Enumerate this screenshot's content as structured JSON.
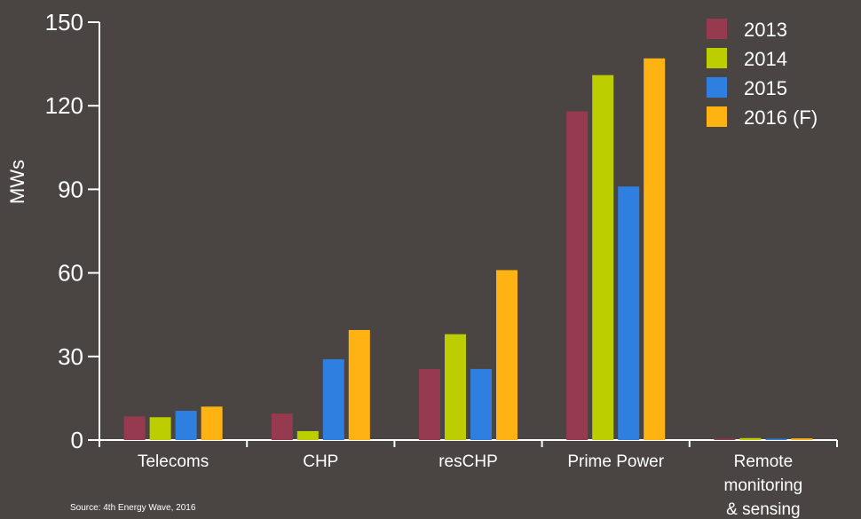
{
  "chart_data": {
    "type": "bar",
    "title": "",
    "xlabel": "",
    "ylabel": "MWs",
    "ylim": [
      0,
      150
    ],
    "yticks": [
      0,
      30,
      60,
      90,
      120,
      150
    ],
    "grid": false,
    "legend_position": "top-right",
    "categories": [
      [
        "Telecoms"
      ],
      [
        "CHP"
      ],
      [
        "resCHP"
      ],
      [
        "Prime Power"
      ],
      [
        "Remote",
        "monitoring",
        "& sensing"
      ]
    ],
    "series": [
      {
        "name": "2013",
        "color": "#963a50",
        "values": [
          8.5,
          9.5,
          25.5,
          118,
          0.3
        ]
      },
      {
        "name": "2014",
        "color": "#bccd00",
        "values": [
          8.2,
          3.2,
          38,
          131,
          0.7
        ]
      },
      {
        "name": "2015",
        "color": "#2e7fe0",
        "values": [
          10.5,
          29,
          25.5,
          91,
          0.3
        ]
      },
      {
        "name": "2016 (F)",
        "color": "#ffb312",
        "values": [
          12,
          39.5,
          61,
          137,
          0.6
        ]
      }
    ],
    "source": "Source: 4th Energy Wave, 2016"
  }
}
